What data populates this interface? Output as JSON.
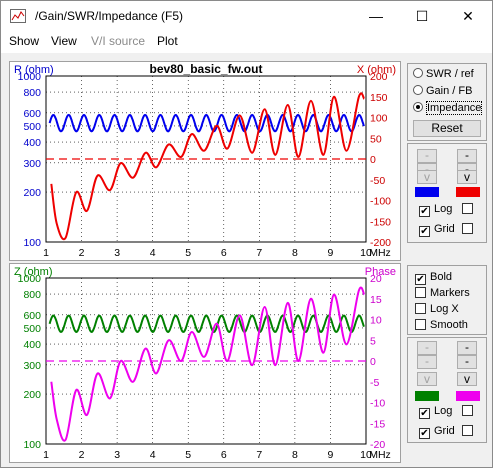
{
  "window": {
    "title": "/Gain/SWR/Impedance (F5)",
    "minimize_glyph": "—",
    "maximize_glyph": "☐",
    "close_glyph": "✕"
  },
  "menu": [
    {
      "label": "Show",
      "enabled": true
    },
    {
      "label": "View",
      "enabled": true
    },
    {
      "label": "V/I source",
      "enabled": false
    },
    {
      "label": "Plot",
      "enabled": true
    }
  ],
  "modes": {
    "options": [
      "SWR / ref",
      "Gain / FB",
      "Impedance"
    ],
    "selected": "Impedance",
    "reset_label": "Reset"
  },
  "top_controls": {
    "left_buttons": [
      "-",
      "-",
      "v"
    ],
    "right_buttons": [
      "-",
      "-",
      "v"
    ],
    "left_color": "#0000ee",
    "right_color": "#ee0000",
    "log_label": "Log",
    "grid_label": "Grid",
    "log_left": true,
    "log_right": false,
    "grid_left": true,
    "grid_right": false
  },
  "options": {
    "bold_label": "Bold",
    "bold": true,
    "markers_label": "Markers",
    "markers": false,
    "logx_label": "Log X",
    "logx": false,
    "smooth_label": "Smooth",
    "smooth": false
  },
  "bottom_controls": {
    "left_buttons": [
      "-",
      "-",
      "v"
    ],
    "right_buttons": [
      "-",
      "-",
      "v"
    ],
    "left_color": "#008000",
    "right_color": "#ee00ee",
    "log_label": "Log",
    "grid_label": "Grid",
    "log_left": true,
    "log_right": false,
    "grid_left": true,
    "grid_right": false
  },
  "chart_data": [
    {
      "type": "line",
      "title": "bev80_basic_fw.out",
      "xlabel": "MHz",
      "x_ticks": [
        "1",
        "2",
        "3",
        "4",
        "5",
        "6",
        "7",
        "8",
        "9",
        "10"
      ],
      "xlim": [
        1,
        10
      ],
      "left_axis_label": "R (ohm)",
      "left_ticks": [
        "1000",
        "800",
        "600",
        "500",
        "400",
        "300",
        "200",
        "100"
      ],
      "left_scale": "log",
      "left_lim": [
        100,
        1000
      ],
      "right_axis_label": "X (ohm)",
      "right_ticks": [
        "200",
        "150",
        "100",
        "50",
        "0",
        "-50",
        "-100",
        "-150",
        "-200"
      ],
      "right_lim": [
        -200,
        200
      ],
      "grid": true,
      "series": [
        {
          "color": "#0000ee",
          "axis": "left",
          "base": 520,
          "amplitude_ratio": 1.12,
          "period_mhz": 0.43
        },
        {
          "color": "#ee0000",
          "axis": "right",
          "points": [
            [
              1.15,
              -60
            ],
            [
              1.3,
              -155
            ],
            [
              1.55,
              -190
            ],
            [
              1.85,
              -80
            ],
            [
              2.15,
              -125
            ],
            [
              2.45,
              -40
            ],
            [
              2.8,
              -75
            ],
            [
              3.1,
              -10
            ],
            [
              3.45,
              -45
            ],
            [
              3.8,
              15
            ],
            [
              4.1,
              -20
            ],
            [
              4.45,
              35
            ],
            [
              4.8,
              5
            ],
            [
              5.1,
              60
            ],
            [
              5.45,
              20
            ],
            [
              5.8,
              80
            ],
            [
              6.1,
              25
            ],
            [
              6.45,
              105
            ],
            [
              6.8,
              15
            ],
            [
              7.15,
              120
            ],
            [
              7.45,
              10
            ],
            [
              7.8,
              130
            ],
            [
              8.1,
              5
            ],
            [
              8.45,
              140
            ],
            [
              8.8,
              10
            ],
            [
              9.1,
              150
            ],
            [
              9.45,
              20
            ],
            [
              9.8,
              150
            ],
            [
              9.95,
              145
            ]
          ]
        }
      ],
      "reference_lines": [
        {
          "color": "#ee0000",
          "axis": "right",
          "value": 0,
          "dashed": true
        }
      ]
    },
    {
      "type": "line",
      "title": "",
      "xlabel": "MHz",
      "x_ticks": [
        "1",
        "2",
        "3",
        "4",
        "5",
        "6",
        "7",
        "8",
        "9",
        "10"
      ],
      "xlim": [
        1,
        10
      ],
      "left_axis_label": "Z (ohm)",
      "left_ticks": [
        "1000",
        "800",
        "600",
        "500",
        "400",
        "300",
        "200",
        "100"
      ],
      "left_scale": "log",
      "left_lim": [
        100,
        1000
      ],
      "right_axis_label": "Phase",
      "right_ticks": [
        "20",
        "15",
        "10",
        "5",
        "0",
        "-5",
        "-10",
        "-15",
        "-20"
      ],
      "right_lim": [
        -20,
        20
      ],
      "grid": true,
      "series": [
        {
          "color": "#008000",
          "axis": "left",
          "base": 530,
          "amplitude_ratio": 1.12,
          "period_mhz": 0.43
        },
        {
          "color": "#ee00ee",
          "axis": "right",
          "points": [
            [
              1.15,
              -5
            ],
            [
              1.3,
              -14
            ],
            [
              1.55,
              -19
            ],
            [
              1.85,
              -7
            ],
            [
              2.15,
              -13
            ],
            [
              2.45,
              -3
            ],
            [
              2.8,
              -9
            ],
            [
              3.1,
              0
            ],
            [
              3.45,
              -5
            ],
            [
              3.8,
              3
            ],
            [
              4.1,
              -3
            ],
            [
              4.45,
              5
            ],
            [
              4.8,
              0
            ],
            [
              5.1,
              7
            ],
            [
              5.45,
              1
            ],
            [
              5.8,
              9
            ],
            [
              6.1,
              0
            ],
            [
              6.45,
              11
            ],
            [
              6.8,
              -1
            ],
            [
              7.15,
              13
            ],
            [
              7.45,
              -1
            ],
            [
              7.8,
              14
            ],
            [
              8.1,
              0
            ],
            [
              8.45,
              15
            ],
            [
              8.8,
              2
            ],
            [
              9.1,
              16
            ],
            [
              9.45,
              4
            ],
            [
              9.8,
              17
            ],
            [
              9.95,
              16
            ]
          ]
        }
      ],
      "reference_lines": [
        {
          "color": "#ee00ee",
          "axis": "right",
          "value": 0,
          "dashed": true
        }
      ]
    }
  ]
}
